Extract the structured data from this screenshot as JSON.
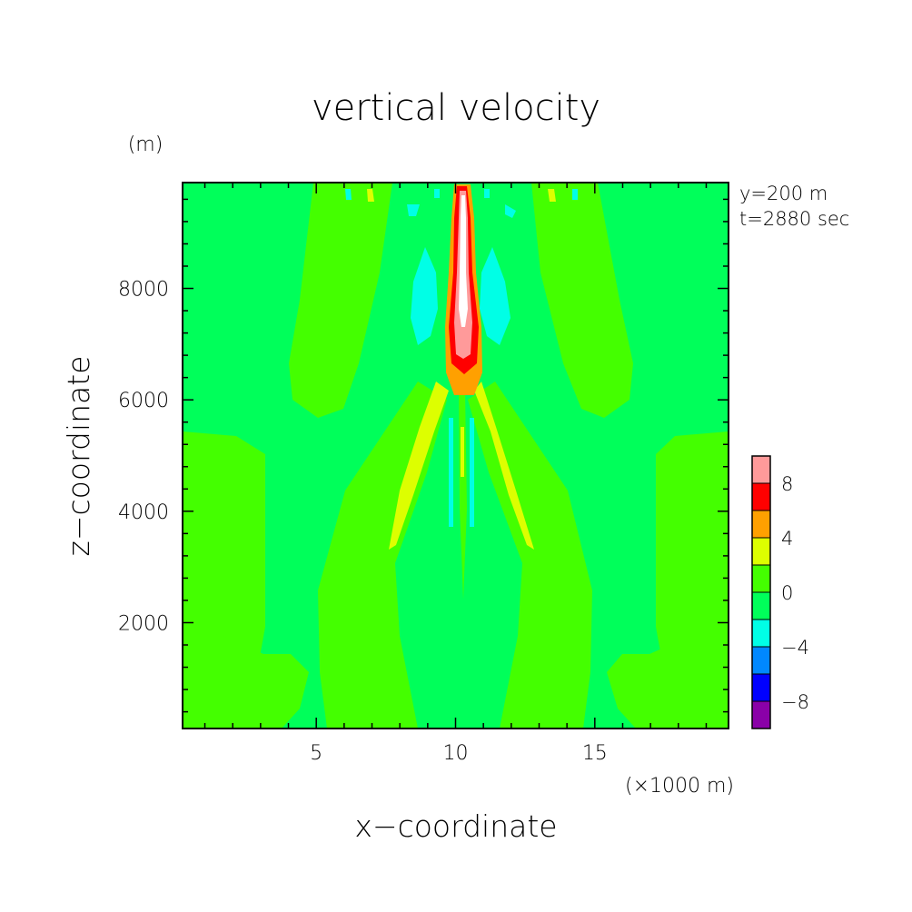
{
  "chart_data": {
    "type": "heatmap",
    "title": "vertical velocity",
    "xlabel": "x−coordinate",
    "ylabel": "z−coordinate",
    "x_unit": "(×1000 m)",
    "y_unit": "(m)",
    "annotations": [
      "y=200 m",
      "t=2880 sec"
    ],
    "x_range": [
      0.2,
      19.8
    ],
    "y_range": [
      100,
      9900
    ],
    "x_ticks": [
      5,
      10,
      15
    ],
    "y_ticks": [
      2000,
      4000,
      6000,
      8000
    ],
    "legend": {
      "placement": "right",
      "levels": [
        -10,
        -8,
        -6,
        -4,
        -2,
        0,
        2,
        4,
        6,
        8,
        10
      ],
      "tick_labels": [
        "8",
        "4",
        "0",
        "−4",
        "−8"
      ],
      "tick_values": [
        8,
        4,
        0,
        -4,
        -8
      ],
      "colors": [
        "#8a00a8",
        "#0000ff",
        "#0088ff",
        "#00ffe6",
        "#00ff5a",
        "#44ff00",
        "#ddff00",
        "#ffa000",
        "#ff0000",
        "#ff9a9a"
      ]
    },
    "background_level_color": "#00ff5a"
  }
}
